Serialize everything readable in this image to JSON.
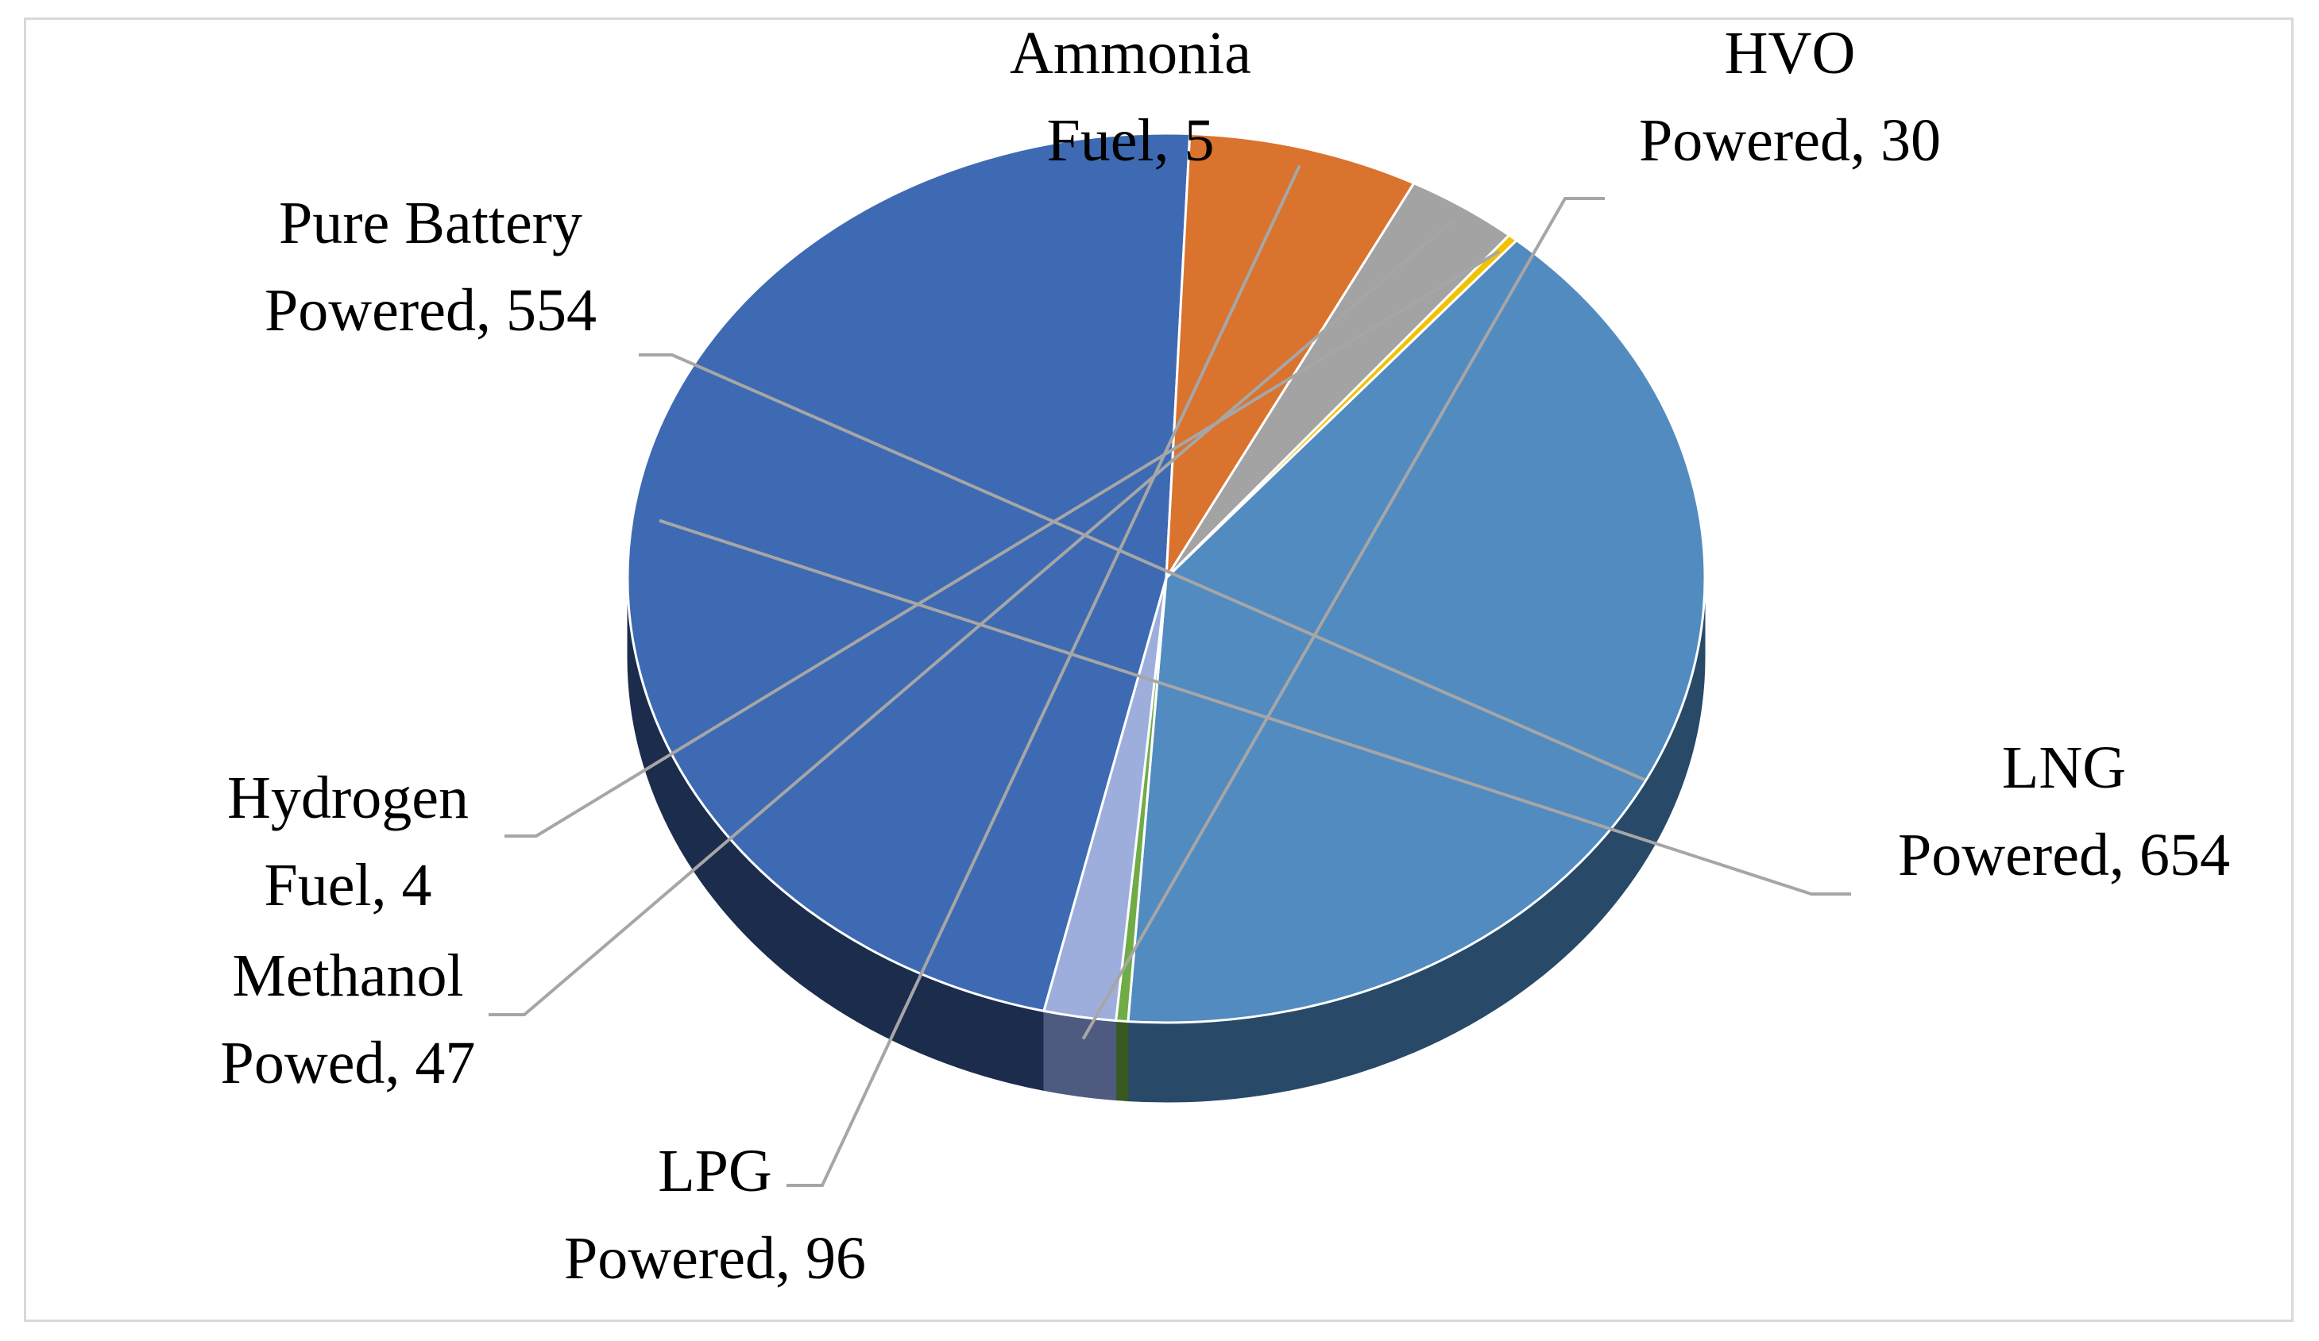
{
  "chart_data": {
    "type": "pie",
    "style": "3d",
    "title": "",
    "labels": [
      "LNG Powered",
      "LPG Powered",
      "Methanol Powed",
      "Hydrogen Fuel",
      "Pure Battery Powered",
      "Ammonia Fuel",
      "HVO Powered"
    ],
    "values": [
      654,
      96,
      47,
      4,
      554,
      5,
      30
    ],
    "colors": [
      "#3e6ab3",
      "#d9732e",
      "#a3a3a3",
      "#f2c200",
      "#528bc0",
      "#6fac46",
      "#9daedd"
    ],
    "side_colors": [
      "#1b2c4d",
      "#6e3715",
      "#4f4f4f",
      "#7a6100",
      "#284968",
      "#385a22",
      "#4e5a80"
    ],
    "data_labels": [
      {
        "line1": "LNG",
        "line2": "Powered, 654"
      },
      {
        "line1": "LPG",
        "line2": "Powered, 96"
      },
      {
        "line1": "Methanol",
        "line2": "Powed, 47"
      },
      {
        "line1": "Hydrogen",
        "line2": "Fuel, 4"
      },
      {
        "line1": "Pure Battery",
        "line2": "Powered, 554"
      },
      {
        "line1": "Ammonia",
        "line2": "Fuel, 5"
      },
      {
        "line1": "HVO",
        "line2": "Powered, 30"
      }
    ],
    "legend": "none",
    "leader_line_color": "#a6a6a6"
  }
}
